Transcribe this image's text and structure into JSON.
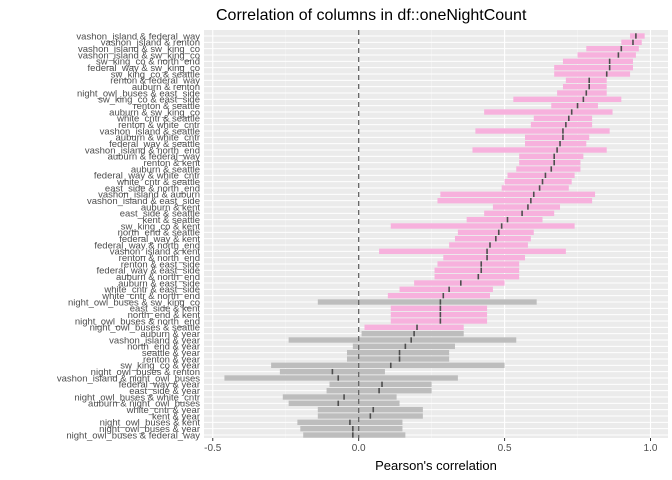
{
  "chart_data": {
    "type": "bar",
    "title": "Correlation of columns in df::oneNightCount",
    "xlabel": "Pearson's correlation",
    "ylabel": "",
    "xlim": [
      -0.53,
      1.06
    ],
    "x_ticks": [
      -0.5,
      0.0,
      0.5,
      1.0
    ],
    "x_tick_labels": [
      "-0.5",
      "0.0",
      "0.5",
      "1.0"
    ],
    "reference_line": 0,
    "grid": true,
    "colors": {
      "panel_bg": "#ebebeb",
      "grid_major": "#ffffff",
      "grid_minor": "#f5f5f5",
      "positive_interval": "#f7b1dd",
      "nonsignificant_interval": "#bdbdbd",
      "estimate_marker": "#4d4d4d",
      "reference_line": "#666666"
    },
    "rows": [
      {
        "label": "vashon_island & federal_way",
        "estimate": 0.95,
        "lower": 0.93,
        "upper": 0.98,
        "significant": true
      },
      {
        "label": "vashon_island & renton",
        "estimate": 0.94,
        "lower": 0.9,
        "upper": 0.97,
        "significant": true
      },
      {
        "label": "vashon_island & sw_king_co",
        "estimate": 0.9,
        "lower": 0.78,
        "upper": 0.96,
        "significant": true
      },
      {
        "label": "vashon_island & sw_king_co",
        "estimate": 0.89,
        "lower": 0.75,
        "upper": 0.95,
        "significant": true
      },
      {
        "label": "sw_king_co & north_end",
        "estimate": 0.86,
        "lower": 0.7,
        "upper": 0.94,
        "significant": true
      },
      {
        "label": "federal_way & sw_king_co",
        "estimate": 0.86,
        "lower": 0.67,
        "upper": 0.94,
        "significant": true
      },
      {
        "label": "sw_king_co & seattle",
        "estimate": 0.85,
        "lower": 0.67,
        "upper": 0.93,
        "significant": true
      },
      {
        "label": "renton & federal_way",
        "estimate": 0.79,
        "lower": 0.71,
        "upper": 0.85,
        "significant": true
      },
      {
        "label": "auburn & renton",
        "estimate": 0.79,
        "lower": 0.7,
        "upper": 0.85,
        "significant": true
      },
      {
        "label": "night_owl_buses & east_side",
        "estimate": 0.78,
        "lower": 0.68,
        "upper": 0.85,
        "significant": true
      },
      {
        "label": "sw_king_co & east_side",
        "estimate": 0.77,
        "lower": 0.53,
        "upper": 0.9,
        "significant": true
      },
      {
        "label": "renton & seattle",
        "estimate": 0.75,
        "lower": 0.66,
        "upper": 0.82,
        "significant": true
      },
      {
        "label": "auburn & sw_king_co",
        "estimate": 0.73,
        "lower": 0.43,
        "upper": 0.87,
        "significant": true
      },
      {
        "label": "white_cntr & seattle",
        "estimate": 0.72,
        "lower": 0.6,
        "upper": 0.8,
        "significant": true
      },
      {
        "label": "renton & white_cntr",
        "estimate": 0.71,
        "lower": 0.59,
        "upper": 0.8,
        "significant": true
      },
      {
        "label": "vashon_island & seattle",
        "estimate": 0.7,
        "lower": 0.4,
        "upper": 0.86,
        "significant": true
      },
      {
        "label": "auburn & white_cntr",
        "estimate": 0.7,
        "lower": 0.57,
        "upper": 0.79,
        "significant": true
      },
      {
        "label": "federal_way & seattle",
        "estimate": 0.69,
        "lower": 0.57,
        "upper": 0.78,
        "significant": true
      },
      {
        "label": "vashon_island & north_end",
        "estimate": 0.68,
        "lower": 0.39,
        "upper": 0.85,
        "significant": true
      },
      {
        "label": "auburn & federal_way",
        "estimate": 0.67,
        "lower": 0.55,
        "upper": 0.77,
        "significant": true
      },
      {
        "label": "renton & kent",
        "estimate": 0.67,
        "lower": 0.55,
        "upper": 0.76,
        "significant": true
      },
      {
        "label": "auburn & seattle",
        "estimate": 0.66,
        "lower": 0.54,
        "upper": 0.76,
        "significant": true
      },
      {
        "label": "federal_way & white_cntr",
        "estimate": 0.64,
        "lower": 0.51,
        "upper": 0.74,
        "significant": true
      },
      {
        "label": "white_cntr & seattle",
        "estimate": 0.63,
        "lower": 0.5,
        "upper": 0.73,
        "significant": true
      },
      {
        "label": "east_side & north_end",
        "estimate": 0.62,
        "lower": 0.49,
        "upper": 0.72,
        "significant": true
      },
      {
        "label": "vashon_island & auburn",
        "estimate": 0.6,
        "lower": 0.28,
        "upper": 0.81,
        "significant": true
      },
      {
        "label": "vashon_island & east_side",
        "estimate": 0.59,
        "lower": 0.27,
        "upper": 0.8,
        "significant": true
      },
      {
        "label": "auburn & kent",
        "estimate": 0.58,
        "lower": 0.46,
        "upper": 0.69,
        "significant": true
      },
      {
        "label": "east_side & seattle",
        "estimate": 0.56,
        "lower": 0.43,
        "upper": 0.67,
        "significant": true
      },
      {
        "label": "kent & seattle",
        "estimate": 0.51,
        "lower": 0.37,
        "upper": 0.63,
        "significant": true
      },
      {
        "label": "sw_king_co & kent",
        "estimate": 0.49,
        "lower": 0.11,
        "upper": 0.74,
        "significant": true
      },
      {
        "label": "north_end & seattle",
        "estimate": 0.48,
        "lower": 0.34,
        "upper": 0.6,
        "significant": true
      },
      {
        "label": "federal_way & kent",
        "estimate": 0.47,
        "lower": 0.33,
        "upper": 0.59,
        "significant": true
      },
      {
        "label": "federal_way & north_end",
        "estimate": 0.45,
        "lower": 0.31,
        "upper": 0.58,
        "significant": true
      },
      {
        "label": "vashon_island & kent",
        "estimate": 0.44,
        "lower": 0.07,
        "upper": 0.71,
        "significant": true
      },
      {
        "label": "renton & north_end",
        "estimate": 0.44,
        "lower": 0.29,
        "upper": 0.57,
        "significant": true
      },
      {
        "label": "renton & east_side",
        "estimate": 0.42,
        "lower": 0.27,
        "upper": 0.55,
        "significant": true
      },
      {
        "label": "federal_way & east_side",
        "estimate": 0.42,
        "lower": 0.26,
        "upper": 0.55,
        "significant": true
      },
      {
        "label": "auburn & north_end",
        "estimate": 0.41,
        "lower": 0.26,
        "upper": 0.55,
        "significant": true
      },
      {
        "label": "auburn & east_side",
        "estimate": 0.35,
        "lower": 0.19,
        "upper": 0.5,
        "significant": true
      },
      {
        "label": "white_cntr & east_side",
        "estimate": 0.31,
        "lower": 0.14,
        "upper": 0.46,
        "significant": true
      },
      {
        "label": "white_cntr & north_end",
        "estimate": 0.29,
        "lower": 0.1,
        "upper": 0.45,
        "significant": true
      },
      {
        "label": "night_owl_buses & sw_king_co",
        "estimate": 0.28,
        "lower": -0.14,
        "upper": 0.61,
        "significant": false
      },
      {
        "label": "east_side & kent",
        "estimate": 0.28,
        "lower": 0.11,
        "upper": 0.44,
        "significant": true
      },
      {
        "label": "north_end & kent",
        "estimate": 0.28,
        "lower": 0.11,
        "upper": 0.44,
        "significant": true
      },
      {
        "label": "night_owl_buses & north_end",
        "estimate": 0.28,
        "lower": 0.11,
        "upper": 0.44,
        "significant": true
      },
      {
        "label": "night_owl_buses & seattle",
        "estimate": 0.2,
        "lower": 0.02,
        "upper": 0.36,
        "significant": true
      },
      {
        "label": "auburn & year",
        "estimate": 0.19,
        "lower": 0.01,
        "upper": 0.36,
        "significant": false
      },
      {
        "label": "vashon_island & year",
        "estimate": 0.18,
        "lower": -0.24,
        "upper": 0.54,
        "significant": false
      },
      {
        "label": "north_end & year",
        "estimate": 0.16,
        "lower": -0.02,
        "upper": 0.33,
        "significant": false
      },
      {
        "label": "seattle & year",
        "estimate": 0.14,
        "lower": -0.04,
        "upper": 0.31,
        "significant": false
      },
      {
        "label": "renton & year",
        "estimate": 0.14,
        "lower": -0.04,
        "upper": 0.31,
        "significant": false
      },
      {
        "label": "sw_king_co & year",
        "estimate": 0.11,
        "lower": -0.3,
        "upper": 0.5,
        "significant": false
      },
      {
        "label": "night_owl_buses & renton",
        "estimate": -0.09,
        "lower": -0.27,
        "upper": 0.09,
        "significant": false
      },
      {
        "label": "vashon_island & night_owl_buses",
        "estimate": -0.07,
        "lower": -0.46,
        "upper": 0.34,
        "significant": false
      },
      {
        "label": "federal_way & year",
        "estimate": 0.08,
        "lower": -0.1,
        "upper": 0.25,
        "significant": false
      },
      {
        "label": "east_side & year",
        "estimate": 0.07,
        "lower": -0.11,
        "upper": 0.25,
        "significant": false
      },
      {
        "label": "night_owl_buses & white_cntr",
        "estimate": -0.05,
        "lower": -0.26,
        "upper": 0.13,
        "significant": false
      },
      {
        "label": "auburn & night_owl_buses",
        "estimate": -0.07,
        "lower": -0.24,
        "upper": 0.14,
        "significant": false
      },
      {
        "label": "white_cntr & year",
        "estimate": 0.05,
        "lower": -0.14,
        "upper": 0.22,
        "significant": false
      },
      {
        "label": "kent & year",
        "estimate": 0.04,
        "lower": -0.14,
        "upper": 0.22,
        "significant": false
      },
      {
        "label": "night_owl_buses & kent",
        "estimate": -0.03,
        "lower": -0.21,
        "upper": 0.15,
        "significant": false
      },
      {
        "label": "night_owl_buses & year",
        "estimate": -0.02,
        "lower": -0.2,
        "upper": 0.15,
        "significant": false
      },
      {
        "label": "night_owl_buses & federal_way",
        "estimate": -0.02,
        "lower": -0.19,
        "upper": 0.16,
        "significant": false
      }
    ]
  }
}
